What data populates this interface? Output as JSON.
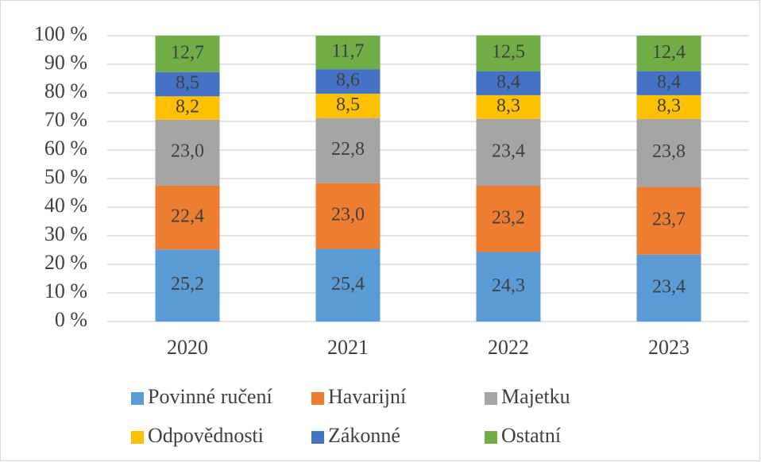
{
  "chart_data": {
    "type": "stacked_bar",
    "categories": [
      "2020",
      "2021",
      "2022",
      "2023"
    ],
    "series": [
      {
        "name": "Povinné ručení",
        "color": "#5b9bd5",
        "values": [
          25.2,
          25.4,
          24.3,
          23.4
        ],
        "value_labels": [
          "25,2",
          "25,4",
          "24,3",
          "23,4"
        ]
      },
      {
        "name": "Havarijní",
        "color": "#ed7d31",
        "values": [
          22.4,
          23.0,
          23.2,
          23.7
        ],
        "value_labels": [
          "22,4",
          "23,0",
          "23,2",
          "23,7"
        ]
      },
      {
        "name": "Majetku",
        "color": "#a5a5a5",
        "values": [
          23.0,
          22.8,
          23.4,
          23.8
        ],
        "value_labels": [
          "23,0",
          "22,8",
          "23,4",
          "23,8"
        ]
      },
      {
        "name": "Odpovědnosti",
        "color": "#ffc000",
        "values": [
          8.2,
          8.5,
          8.3,
          8.3
        ],
        "value_labels": [
          "8,2",
          "8,5",
          "8,3",
          "8,3"
        ]
      },
      {
        "name": "Zákonné",
        "color": "#4472c4",
        "values": [
          8.5,
          8.6,
          8.4,
          8.4
        ],
        "value_labels": [
          "8,5",
          "8,6",
          "8,4",
          "8,4"
        ]
      },
      {
        "name": "Ostatní",
        "color": "#70ad47",
        "values": [
          12.7,
          11.7,
          12.5,
          12.4
        ],
        "value_labels": [
          "12,7",
          "11,7",
          "12,5",
          "12,4"
        ]
      }
    ],
    "ylim": [
      0,
      100
    ],
    "yticks": [
      {
        "value": 0,
        "label": "0 %"
      },
      {
        "value": 10,
        "label": "10 %"
      },
      {
        "value": 20,
        "label": "20 %"
      },
      {
        "value": 30,
        "label": "30 %"
      },
      {
        "value": 40,
        "label": "40 %"
      },
      {
        "value": 50,
        "label": "50 %"
      },
      {
        "value": 60,
        "label": "60 %"
      },
      {
        "value": 70,
        "label": "70 %"
      },
      {
        "value": 80,
        "label": "80 %"
      },
      {
        "value": 90,
        "label": "90 %"
      },
      {
        "value": 100,
        "label": "100 %"
      }
    ],
    "grid": true,
    "legend": "bottom"
  }
}
